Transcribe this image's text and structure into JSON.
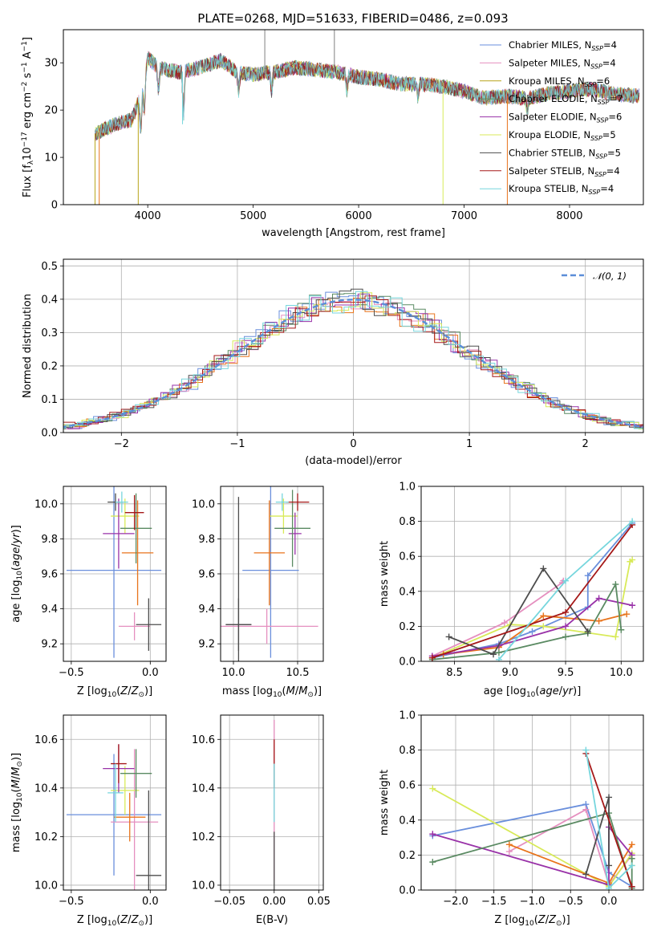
{
  "chart_data": [
    {
      "id": "spectrum",
      "type": "line",
      "title": "PLATE=0268, MJD=51633, FIBERID=0486, z=0.093",
      "xlabel": "wavelength [Angstrom, rest frame]",
      "ylabel": "Flux [f_λ 10^-17 erg cm^-2 s^-1 A^-1]",
      "xlim": [
        3200,
        8700
      ],
      "ylim": [
        0,
        37
      ],
      "xticks": [
        4000,
        5000,
        6000,
        7000,
        8000
      ],
      "yticks": [
        0,
        10,
        20,
        30
      ],
      "legend_position": "top-right",
      "series": [
        {
          "name": "Chabrier MILES, N_SSP=4",
          "color": "#6a8fdc"
        },
        {
          "name": "Salpeter MILES, N_SSP=4",
          "color": "#e58fbf"
        },
        {
          "name": "Kroupa MILES, N_SSP=6",
          "color": "#b8a41a"
        },
        {
          "name": "Chabrier ELODIE, N_SSP=7",
          "color": "#5a8a62"
        },
        {
          "name": "Salpeter ELODIE, N_SSP=6",
          "color": "#9932a8"
        },
        {
          "name": "Kroupa ELODIE, N_SSP=5",
          "color": "#d8ea58"
        },
        {
          "name": "Chabrier STELIB, N_SSP=5",
          "color": "#4d4d4d"
        },
        {
          "name": "Salpeter STELIB, N_SSP=4",
          "color": "#a51818"
        },
        {
          "name": "Kroupa STELIB, N_SSP=4",
          "color": "#76d6dd"
        }
      ],
      "continuum": [
        [
          3500,
          15
        ],
        [
          3700,
          17
        ],
        [
          3850,
          18
        ],
        [
          3950,
          24
        ],
        [
          4000,
          31
        ],
        [
          4100,
          29
        ],
        [
          4300,
          28
        ],
        [
          4500,
          29
        ],
        [
          4700,
          30.5
        ],
        [
          4850,
          28
        ],
        [
          5000,
          27.5
        ],
        [
          5200,
          28
        ],
        [
          5400,
          29
        ],
        [
          5600,
          28.5
        ],
        [
          5800,
          28
        ],
        [
          6000,
          27
        ],
        [
          6200,
          26.5
        ],
        [
          6400,
          25.5
        ],
        [
          6600,
          25.5
        ],
        [
          6800,
          25
        ],
        [
          7000,
          24
        ],
        [
          7200,
          22.5
        ],
        [
          7400,
          23
        ],
        [
          7600,
          22.5
        ],
        [
          7800,
          23.5
        ],
        [
          8000,
          24
        ],
        [
          8200,
          24.5
        ],
        [
          8400,
          23.5
        ],
        [
          8650,
          23
        ]
      ],
      "spikes": [
        [
          3500,
          0
        ],
        [
          3540,
          0
        ],
        [
          3910,
          0
        ],
        [
          4330,
          17
        ],
        [
          5110,
          37
        ],
        [
          5770,
          37
        ],
        [
          6800,
          0
        ],
        [
          7410,
          0
        ]
      ]
    },
    {
      "id": "residuals",
      "type": "histogram",
      "xlabel": "(data-model)/error",
      "ylabel": "Normed distribution",
      "xlim": [
        -2.5,
        2.5
      ],
      "ylim": [
        0,
        0.52
      ],
      "xticks": [
        -2,
        -1,
        0,
        1,
        2
      ],
      "yticks": [
        0.0,
        0.1,
        0.2,
        0.3,
        0.4,
        0.5
      ],
      "grid": true,
      "legend_position": "top-right",
      "reference": {
        "name": "𝒩(0, 1)",
        "color": "#5b8ed8",
        "style": "dashed",
        "mean": 0,
        "sigma": 1
      }
    },
    {
      "id": "age_vs_Z",
      "type": "errorbar",
      "xlabel": "Z [log10(Z/Z⊙)]",
      "ylabel": "age [log10(age/yr)]",
      "xlim": [
        -0.55,
        0.1
      ],
      "ylim": [
        9.1,
        10.1
      ],
      "xticks": [
        -0.5,
        0.0
      ],
      "yticks": [
        9.2,
        9.4,
        9.6,
        9.8,
        10.0
      ],
      "grid": true,
      "points": [
        {
          "x": -0.23,
          "y": 9.62,
          "xerr": 0.3,
          "yerr": 0.5,
          "color": "#6a8fdc"
        },
        {
          "x": -0.1,
          "y": 9.3,
          "xerr": 0.1,
          "yerr": 0.08,
          "color": "#e58fbf"
        },
        {
          "x": -0.16,
          "y": 9.93,
          "xerr": 0.09,
          "yerr": 0.1,
          "color": "#d8ea58"
        },
        {
          "x": -0.08,
          "y": 9.72,
          "xerr": 0.1,
          "yerr": 0.3,
          "color": "#e8741c"
        },
        {
          "x": -0.2,
          "y": 9.83,
          "xerr": 0.1,
          "yerr": 0.2,
          "color": "#9932a8"
        },
        {
          "x": -0.09,
          "y": 9.86,
          "xerr": 0.1,
          "yerr": 0.2,
          "color": "#5a8a62"
        },
        {
          "x": -0.22,
          "y": 10.01,
          "xerr": 0.05,
          "yerr": 0.05,
          "color": "#4d4d4d"
        },
        {
          "x": -0.01,
          "y": 9.31,
          "xerr": 0.08,
          "yerr": 0.15,
          "color": "#4d4d4d"
        },
        {
          "x": -0.1,
          "y": 9.95,
          "xerr": 0.06,
          "yerr": 0.1,
          "color": "#a51818"
        },
        {
          "x": -0.18,
          "y": 10.01,
          "xerr": 0.04,
          "yerr": 0.06,
          "color": "#76d6dd"
        }
      ]
    },
    {
      "id": "age_vs_mass",
      "type": "errorbar",
      "xlabel": "mass [log10(M/M⊙)]",
      "ylabel": "",
      "xlim": [
        9.9,
        10.7
      ],
      "ylim": [
        9.1,
        10.1
      ],
      "xticks": [
        10.0,
        10.5
      ],
      "yticks": [
        9.2,
        9.4,
        9.6,
        9.8,
        10.0
      ],
      "grid": true,
      "points": [
        {
          "x": 10.29,
          "y": 9.62,
          "xerr": 0.22,
          "yerr": 0.5,
          "color": "#6a8fdc"
        },
        {
          "x": 10.26,
          "y": 9.3,
          "xerr": 0.4,
          "yerr": 0.1,
          "color": "#e58fbf"
        },
        {
          "x": 10.39,
          "y": 9.93,
          "xerr": 0.11,
          "yerr": 0.1,
          "color": "#d8ea58"
        },
        {
          "x": 10.28,
          "y": 9.72,
          "xerr": 0.12,
          "yerr": 0.3,
          "color": "#e8741c"
        },
        {
          "x": 10.48,
          "y": 9.83,
          "xerr": 0.05,
          "yerr": 0.12,
          "color": "#9932a8"
        },
        {
          "x": 10.46,
          "y": 9.86,
          "xerr": 0.14,
          "yerr": 0.22,
          "color": "#5a8a62"
        },
        {
          "x": 10.04,
          "y": 9.31,
          "xerr": 0.1,
          "yerr": 0.15,
          "color": "#4d4d4d"
        },
        {
          "x": 10.04,
          "y": 9.31,
          "xerr": 0.1,
          "yerr": 0.73,
          "color": "#4d4d4d"
        },
        {
          "x": 10.5,
          "y": 10.01,
          "xerr": 0.09,
          "yerr": 0.05,
          "color": "#a51818"
        },
        {
          "x": 10.38,
          "y": 10.01,
          "xerr": 0.05,
          "yerr": 0.05,
          "color": "#76d6dd"
        }
      ]
    },
    {
      "id": "weight_vs_age",
      "type": "line",
      "xlabel": "age  [log10(age/yr)]",
      "ylabel": "mass weight",
      "xlim": [
        8.2,
        10.2
      ],
      "ylim": [
        0.0,
        1.0
      ],
      "xticks": [
        8.5,
        9.0,
        9.5,
        10.0
      ],
      "yticks": [
        0.0,
        0.2,
        0.4,
        0.6,
        0.8,
        1.0
      ],
      "grid": true,
      "series": [
        {
          "color": "#6a8fdc",
          "x": [
            8.3,
            8.9,
            9.2,
            9.7,
            9.7,
            10.1
          ],
          "y": [
            0.02,
            0.1,
            0.17,
            0.31,
            0.49,
            0.79
          ]
        },
        {
          "color": "#e58fbf",
          "x": [
            8.3,
            8.95,
            9.47,
            9.48
          ],
          "y": [
            0.03,
            0.22,
            0.45,
            0.46
          ]
        },
        {
          "color": "#d8ea58",
          "x": [
            8.3,
            9.0,
            9.3,
            9.95,
            10.08,
            10.1
          ],
          "y": [
            0.02,
            0.21,
            0.2,
            0.14,
            0.57,
            0.58
          ]
        },
        {
          "color": "#e8741c",
          "x": [
            8.4,
            8.9,
            9.3,
            9.8,
            10.05
          ],
          "y": [
            0.04,
            0.08,
            0.26,
            0.23,
            0.27
          ]
        },
        {
          "color": "#9932a8",
          "x": [
            8.3,
            8.9,
            9.5,
            9.8,
            10.1
          ],
          "y": [
            0.03,
            0.09,
            0.2,
            0.36,
            0.32
          ]
        },
        {
          "color": "#5a8a62",
          "x": [
            8.3,
            8.9,
            9.5,
            9.7,
            9.95,
            10.0
          ],
          "y": [
            0.01,
            0.05,
            0.14,
            0.16,
            0.44,
            0.18
          ]
        },
        {
          "color": "#4d4d4d",
          "x": [
            8.45,
            8.85,
            9.3,
            9.7
          ],
          "y": [
            0.14,
            0.04,
            0.53,
            0.17
          ]
        },
        {
          "color": "#a51818",
          "x": [
            8.3,
            9.5,
            10.1
          ],
          "y": [
            0.02,
            0.28,
            0.78
          ]
        },
        {
          "color": "#76d6dd",
          "x": [
            8.9,
            9.5,
            10.1
          ],
          "y": [
            0.01,
            0.46,
            0.8
          ]
        }
      ]
    },
    {
      "id": "mass_vs_Z",
      "type": "errorbar",
      "xlabel": "Z [log10(Z/Z⊙)]",
      "ylabel": "mass [log10(M/M⊙)]",
      "xlim": [
        -0.55,
        0.1
      ],
      "ylim": [
        9.98,
        10.7
      ],
      "xticks": [
        -0.5,
        0.0
      ],
      "yticks": [
        10.0,
        10.2,
        10.4,
        10.6
      ],
      "grid": true,
      "points": [
        {
          "x": -0.23,
          "y": 10.29,
          "xerr": 0.3,
          "yerr": 0.25,
          "color": "#6a8fdc"
        },
        {
          "x": -0.1,
          "y": 10.26,
          "xerr": 0.15,
          "yerr": 0.3,
          "color": "#e58fbf"
        },
        {
          "x": -0.16,
          "y": 10.39,
          "xerr": 0.09,
          "yerr": 0.1,
          "color": "#d8ea58"
        },
        {
          "x": -0.13,
          "y": 10.28,
          "xerr": 0.1,
          "yerr": 0.1,
          "color": "#e8741c"
        },
        {
          "x": -0.2,
          "y": 10.48,
          "xerr": 0.1,
          "yerr": 0.1,
          "color": "#9932a8"
        },
        {
          "x": -0.09,
          "y": 10.46,
          "xerr": 0.1,
          "yerr": 0.1,
          "color": "#5a8a62"
        },
        {
          "x": -0.01,
          "y": 10.04,
          "xerr": 0.08,
          "yerr": 0.35,
          "color": "#4d4d4d"
        },
        {
          "x": -0.2,
          "y": 10.5,
          "xerr": 0.05,
          "yerr": 0.08,
          "color": "#a51818"
        },
        {
          "x": -0.22,
          "y": 10.38,
          "xerr": 0.05,
          "yerr": 0.12,
          "color": "#76d6dd"
        }
      ]
    },
    {
      "id": "mass_vs_ebv",
      "type": "errorbar",
      "xlabel": "E(B-V)",
      "ylabel": "",
      "xlim": [
        -0.06,
        0.055
      ],
      "ylim": [
        9.98,
        10.7
      ],
      "xticks": [
        -0.05,
        0.0,
        0.05
      ],
      "yticks": [
        10.0,
        10.2,
        10.4,
        10.6
      ],
      "grid": true,
      "points": [
        {
          "x": 0.0,
          "y": 10.35,
          "xerr": 0,
          "yerr": 0.33,
          "color": "#e58fbf"
        },
        {
          "x": 0.0,
          "y": 10.5,
          "xerr": 0,
          "yerr": 0.1,
          "color": "#a51818"
        },
        {
          "x": 0.0,
          "y": 10.38,
          "xerr": 0,
          "yerr": 0.12,
          "color": "#76d6dd"
        },
        {
          "x": 0.0,
          "y": 10.1,
          "xerr": 0,
          "yerr": 0.12,
          "color": "#4d4d4d"
        }
      ]
    },
    {
      "id": "weight_vs_Z",
      "type": "line",
      "xlabel": "Z [log10(Z/Z⊙)]",
      "ylabel": "mass weight",
      "xlim": [
        -2.45,
        0.45
      ],
      "ylim": [
        0.0,
        1.0
      ],
      "xticks": [
        -2.0,
        -1.5,
        -1.0,
        -0.5,
        0.0
      ],
      "yticks": [
        0.0,
        0.2,
        0.4,
        0.6,
        0.8,
        1.0
      ],
      "grid": true,
      "series": [
        {
          "color": "#6a8fdc",
          "x": [
            -2.3,
            -0.3,
            0.0,
            0.3
          ],
          "y": [
            0.31,
            0.49,
            0.1,
            0.02
          ]
        },
        {
          "color": "#e58fbf",
          "x": [
            -1.3,
            -0.3,
            0.0,
            0.3
          ],
          "y": [
            0.22,
            0.46,
            0.03,
            0.2
          ]
        },
        {
          "color": "#d8ea58",
          "x": [
            -2.3,
            0.0,
            0.3,
            0.3
          ],
          "y": [
            0.58,
            0.02,
            0.21,
            0.14
          ]
        },
        {
          "color": "#e8741c",
          "x": [
            -1.3,
            0.0,
            0.3
          ],
          "y": [
            0.26,
            0.04,
            0.26
          ]
        },
        {
          "color": "#9932a8",
          "x": [
            -2.3,
            0.0,
            0.0,
            0.3
          ],
          "y": [
            0.32,
            0.03,
            0.36,
            0.2
          ]
        },
        {
          "color": "#5a8a62",
          "x": [
            -2.3,
            0.0,
            0.3,
            0.3
          ],
          "y": [
            0.16,
            0.44,
            0.01,
            0.18
          ]
        },
        {
          "color": "#4d4d4d",
          "x": [
            -0.3,
            0.0,
            0.0
          ],
          "y": [
            0.09,
            0.53,
            0.14
          ]
        },
        {
          "color": "#a51818",
          "x": [
            -0.3,
            0.3
          ],
          "y": [
            0.78,
            0.02
          ]
        },
        {
          "color": "#76d6dd",
          "x": [
            -0.3,
            0.0,
            0.3
          ],
          "y": [
            0.8,
            0.01,
            0.14
          ]
        }
      ]
    }
  ]
}
